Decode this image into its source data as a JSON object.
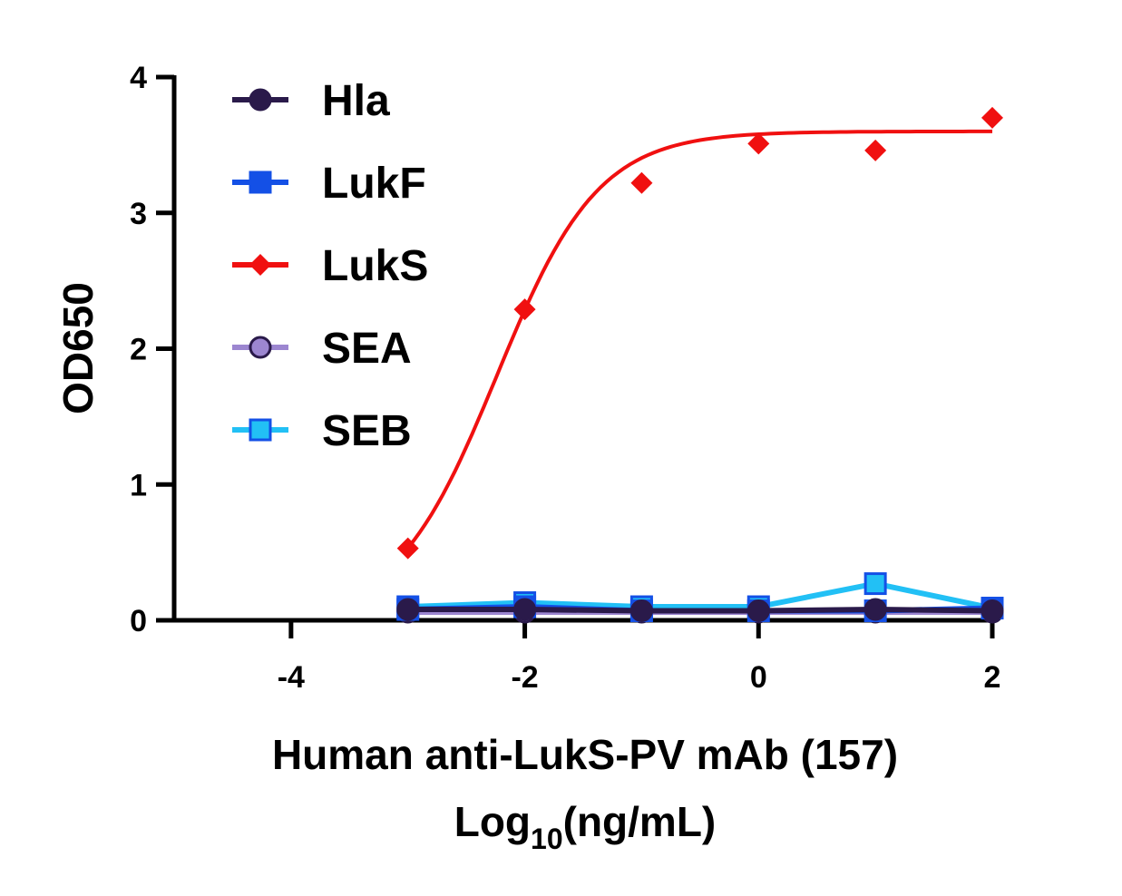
{
  "chart_data": {
    "type": "line",
    "xlabel_line1": "Human anti-LukS-PV mAb (157)",
    "xlabel_line2_main": "Log",
    "xlabel_line2_sub": "10",
    "xlabel_line2_tail": "(ng/mL)",
    "ylabel": "OD650",
    "xlim": [
      -5,
      2
    ],
    "ylim": [
      0,
      4
    ],
    "xticks": [
      -4,
      -2,
      0,
      2
    ],
    "yticks": [
      0,
      1,
      2,
      3,
      4
    ],
    "legend_position": "top-left",
    "x": [
      -3,
      -2,
      -1,
      0,
      1,
      2
    ],
    "series": [
      {
        "name": "Hla",
        "marker": "circle",
        "color": "#2a1a4a",
        "fill": "#2a1a4a",
        "values": [
          0.08,
          0.08,
          0.07,
          0.07,
          0.08,
          0.07
        ]
      },
      {
        "name": "LukF",
        "marker": "square",
        "color": "#1450e6",
        "fill": "#1450e6",
        "values": [
          0.08,
          0.1,
          0.07,
          0.07,
          0.07,
          0.09
        ]
      },
      {
        "name": "LukS",
        "marker": "diamond",
        "color": "#f01010",
        "fill": "#f01010",
        "values": [
          0.53,
          2.29,
          3.22,
          3.51,
          3.46,
          3.7
        ],
        "fit": "sigmoidal"
      },
      {
        "name": "SEA",
        "marker": "circle",
        "color": "#9c86d0",
        "fill": "#9c86d0",
        "values": [
          0.06,
          0.06,
          0.06,
          0.06,
          0.06,
          0.06
        ]
      },
      {
        "name": "SEB",
        "marker": "square",
        "color": "#22c0f5",
        "fill": "#22c0f5",
        "values": [
          0.1,
          0.13,
          0.1,
          0.1,
          0.27,
          0.09
        ]
      }
    ]
  }
}
